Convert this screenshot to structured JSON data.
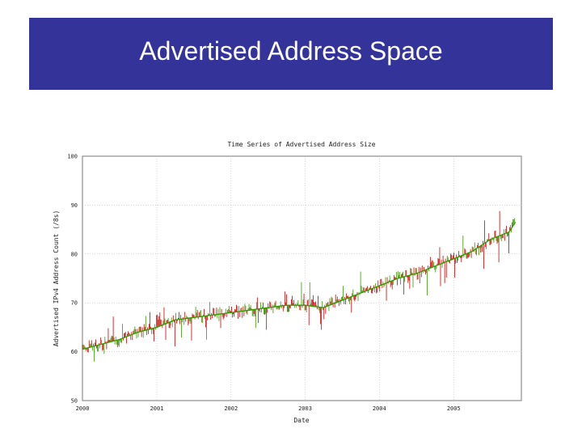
{
  "slide": {
    "title": "Advertised Address Space",
    "banner_color": "#333399"
  },
  "chart_data": {
    "type": "line",
    "title": "Time Series of Advertised Address Size",
    "xlabel": "Date",
    "ylabel": "Advertised IPv4 Address Count (/8s)",
    "x_ticks": [
      "2000",
      "2001",
      "2002",
      "2003",
      "2004",
      "2005"
    ],
    "y_ticks": [
      50,
      60,
      70,
      80,
      90,
      100
    ],
    "xlim": [
      "2000-01-01",
      "2005-11-30"
    ],
    "ylim": [
      50,
      100
    ],
    "grid": true,
    "colors": {
      "trend": "#339900",
      "noise": "#cc0000"
    },
    "series": [
      {
        "x": [
          "2000-01",
          "2000-04",
          "2000-07",
          "2000-10",
          "2001-01",
          "2001-04",
          "2001-07",
          "2001-10",
          "2002-01",
          "2002-04",
          "2002-07",
          "2002-10",
          "2003-01",
          "2003-04",
          "2003-07",
          "2003-10",
          "2004-01",
          "2004-04",
          "2004-07",
          "2004-10",
          "2005-01",
          "2005-04",
          "2005-07",
          "2005-10",
          "2005-11"
        ],
        "y": [
          60.5,
          61.5,
          62.5,
          64.0,
          65.0,
          66.5,
          67.0,
          67.5,
          68.0,
          68.5,
          69.0,
          69.5,
          69.5,
          69.0,
          70.5,
          72.0,
          73.5,
          75.0,
          76.0,
          77.5,
          79.0,
          80.5,
          83.0,
          84.5,
          86.5
        ]
      }
    ]
  }
}
